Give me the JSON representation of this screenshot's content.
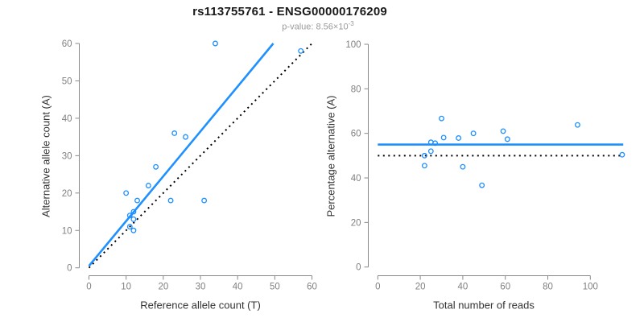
{
  "header": {
    "title": "rs113755761 - ENSG00000176209",
    "subtitle_prefix": "p-value: 8.56×10",
    "subtitle_exponent": "-3"
  },
  "colors": {
    "point_and_fit_blue": "#1E90FF",
    "reference_line_black": "#000000",
    "axis_line_gray": "#888888",
    "tick_label_gray": "#808080",
    "axis_title_dark": "#333333",
    "subtitle_gray": "#9a9a9a"
  },
  "chart_data": [
    {
      "type": "scatter",
      "panel": "left",
      "xlabel": "Reference allele count (T)",
      "ylabel": "Alternative allele count (A)",
      "xlim": [
        0,
        60
      ],
      "ylim": [
        0,
        60
      ],
      "xticks": [
        0,
        10,
        20,
        30,
        40,
        50,
        60
      ],
      "yticks": [
        0,
        10,
        20,
        30,
        40,
        50,
        60
      ],
      "grid": false,
      "points": [
        [
          10,
          20
        ],
        [
          11,
          11
        ],
        [
          11,
          14
        ],
        [
          12,
          10
        ],
        [
          12,
          13
        ],
        [
          12,
          15
        ],
        [
          13,
          18
        ],
        [
          16,
          22
        ],
        [
          18,
          27
        ],
        [
          22,
          18
        ],
        [
          23,
          36
        ],
        [
          26,
          35
        ],
        [
          31,
          18
        ],
        [
          34,
          60
        ],
        [
          57,
          58
        ]
      ],
      "lines": [
        {
          "name": "identity-line",
          "x1": 0,
          "y1": 0,
          "x2": 60,
          "y2": 60,
          "color": "#000000",
          "style": "dotted"
        },
        {
          "name": "regression-line",
          "x1": 0,
          "y1": 0.5,
          "x2": 49.6,
          "y2": 60,
          "color": "#1E90FF",
          "style": "solid"
        }
      ]
    },
    {
      "type": "scatter",
      "panel": "right",
      "xlabel": "Total number of reads",
      "ylabel": "Percentage alternative (A)",
      "xlim": [
        0,
        115.5
      ],
      "ylim": [
        0,
        100
      ],
      "xticks": [
        0,
        20,
        40,
        60,
        80,
        100
      ],
      "yticks": [
        0,
        20,
        40,
        60,
        80,
        100
      ],
      "grid": false,
      "points": [
        [
          22,
          45.5
        ],
        [
          22,
          50
        ],
        [
          25,
          52
        ],
        [
          25,
          56
        ],
        [
          27,
          55.6
        ],
        [
          30,
          66.7
        ],
        [
          31,
          58.1
        ],
        [
          38,
          57.9
        ],
        [
          40,
          45
        ],
        [
          45,
          60
        ],
        [
          49,
          36.7
        ],
        [
          59,
          61
        ],
        [
          61,
          57.4
        ],
        [
          94,
          63.8
        ],
        [
          115,
          50.4
        ]
      ],
      "lines": [
        {
          "name": "null-line",
          "x1": 0,
          "y1": 50,
          "x2": 115.5,
          "y2": 50,
          "color": "#000000",
          "style": "dotted"
        },
        {
          "name": "mean-line",
          "x1": 0,
          "y1": 55,
          "x2": 115.5,
          "y2": 55,
          "color": "#1E90FF",
          "style": "solid"
        }
      ]
    }
  ]
}
